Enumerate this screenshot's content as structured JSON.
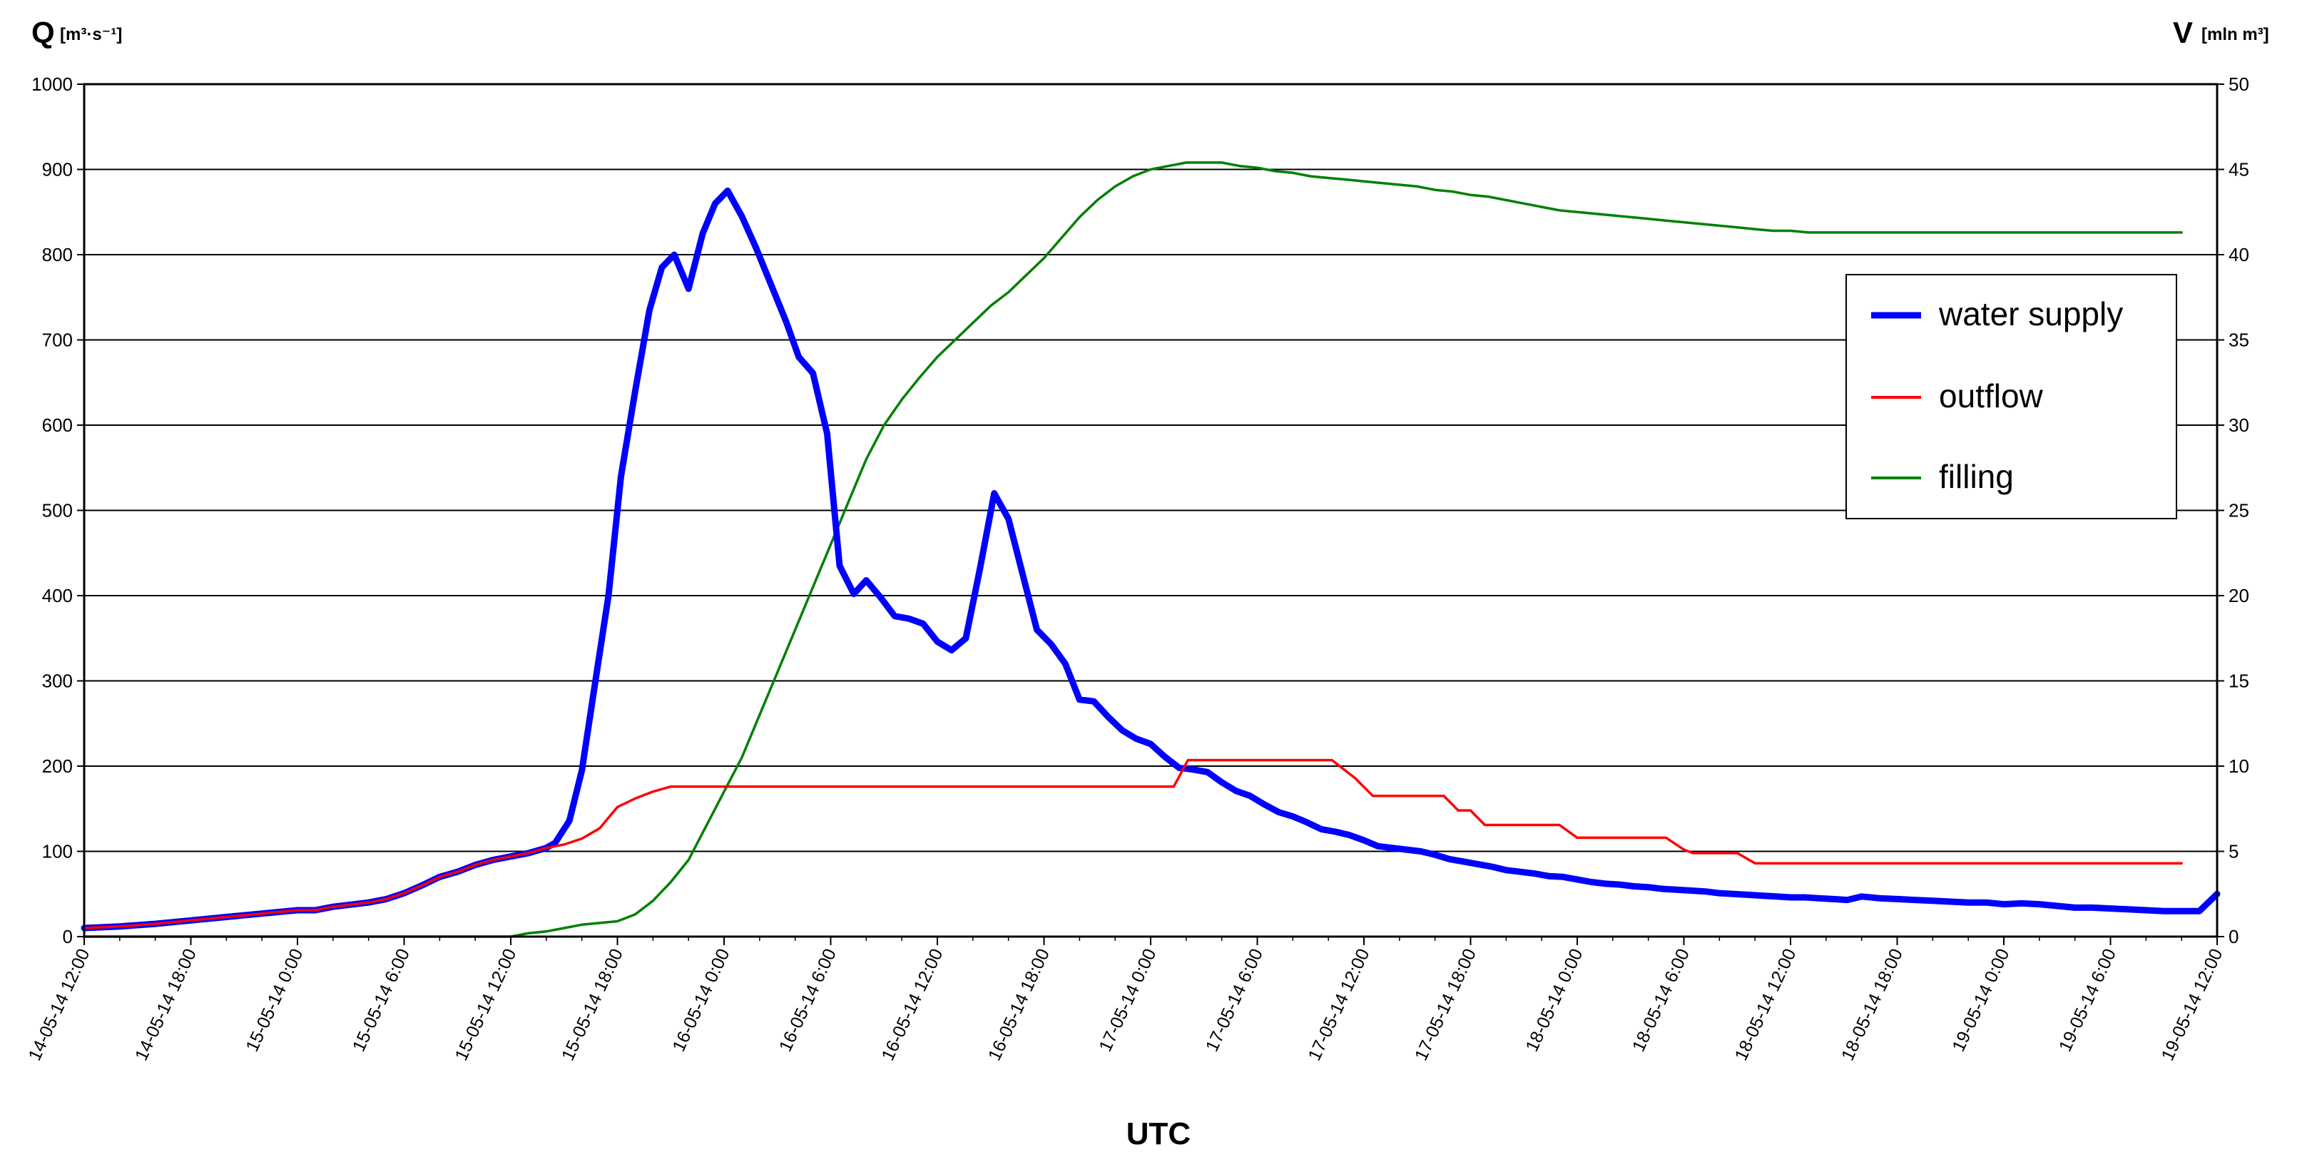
{
  "chart_data": {
    "type": "line",
    "y_left": {
      "label_main": "Q",
      "label_unit": "[m³·s⁻¹]",
      "range": [
        0,
        1000
      ],
      "ticks": [
        "0",
        "100",
        "200",
        "300",
        "400",
        "500",
        "600",
        "700",
        "800",
        "900",
        "1000"
      ]
    },
    "y_right": {
      "label_main": "V",
      "label_unit": "[mln m³]",
      "range": [
        0,
        50
      ],
      "ticks": [
        "0",
        "5",
        "10",
        "15",
        "20",
        "25",
        "30",
        "35",
        "40",
        "45",
        "50"
      ]
    },
    "xlabel": "UTC",
    "x_range_hours": [
      0,
      120
    ],
    "x_ticks": [
      "14-05-14 12:00",
      "14-05-14 18:00",
      "15-05-14 0:00",
      "15-05-14 6:00",
      "15-05-14 12:00",
      "15-05-14 18:00",
      "16-05-14 0:00",
      "16-05-14 6:00",
      "16-05-14 12:00",
      "16-05-14 18:00",
      "17-05-14 0:00",
      "17-05-14 6:00",
      "17-05-14 12:00",
      "17-05-14 18:00",
      "18-05-14 0:00",
      "18-05-14 6:00",
      "18-05-14 12:00",
      "18-05-14 18:00",
      "19-05-14 0:00",
      "19-05-14 6:00",
      "19-05-14 12:00"
    ],
    "grid": true,
    "legend_position": "right",
    "series": [
      {
        "name": "water supply",
        "axis": "left",
        "color": "#0000ff",
        "points": [
          [
            0,
            10
          ],
          [
            2,
            12
          ],
          [
            4,
            15
          ],
          [
            6,
            19
          ],
          [
            8,
            23
          ],
          [
            10,
            27
          ],
          [
            12,
            31
          ],
          [
            13,
            31
          ],
          [
            14,
            35
          ],
          [
            16,
            40
          ],
          [
            17,
            44
          ],
          [
            18,
            51
          ],
          [
            19,
            60
          ],
          [
            20,
            70
          ],
          [
            21,
            76
          ],
          [
            22,
            84
          ],
          [
            23,
            90
          ],
          [
            24,
            94
          ],
          [
            25,
            98
          ],
          [
            26,
            104
          ],
          [
            26.5,
            110
          ],
          [
            27.3,
            136
          ],
          [
            28,
            195
          ],
          [
            28.8,
            305
          ],
          [
            29.5,
            400
          ],
          [
            30.2,
            540
          ],
          [
            31,
            640
          ],
          [
            31.8,
            735
          ],
          [
            32.5,
            785
          ],
          [
            33.2,
            800
          ],
          [
            34,
            760
          ],
          [
            34.8,
            825
          ],
          [
            35.5,
            860
          ],
          [
            36.2,
            875
          ],
          [
            37,
            845
          ],
          [
            37.8,
            808
          ],
          [
            38.6,
            767
          ],
          [
            39.5,
            721
          ],
          [
            40.2,
            680
          ],
          [
            41,
            661
          ],
          [
            41.8,
            590
          ],
          [
            42.5,
            435
          ],
          [
            43.3,
            402
          ],
          [
            44,
            418
          ],
          [
            44.8,
            398
          ],
          [
            45.6,
            376
          ],
          [
            46.4,
            373
          ],
          [
            47.2,
            367
          ],
          [
            48,
            346
          ],
          [
            48.8,
            336
          ],
          [
            49.6,
            350
          ],
          [
            50.4,
            432
          ],
          [
            51.2,
            520
          ],
          [
            52,
            490
          ],
          [
            52.8,
            425
          ],
          [
            53.6,
            360
          ],
          [
            54.4,
            343
          ],
          [
            55.2,
            320
          ],
          [
            56,
            278
          ],
          [
            56.8,
            276
          ],
          [
            57.6,
            258
          ],
          [
            58.4,
            242
          ],
          [
            59.2,
            232
          ],
          [
            60,
            226
          ],
          [
            60.8,
            211
          ],
          [
            61.6,
            198
          ],
          [
            62.4,
            196
          ],
          [
            63.2,
            193
          ],
          [
            64,
            181
          ],
          [
            64.8,
            171
          ],
          [
            65.6,
            165
          ],
          [
            66.4,
            155
          ],
          [
            67.2,
            146
          ],
          [
            68,
            141
          ],
          [
            68.8,
            134
          ],
          [
            69.6,
            126
          ],
          [
            70.4,
            123
          ],
          [
            71.2,
            119
          ],
          [
            72,
            113
          ],
          [
            72.8,
            106
          ],
          [
            73.6,
            104
          ],
          [
            74.4,
            102
          ],
          [
            75.2,
            100
          ],
          [
            76,
            96
          ],
          [
            76.8,
            91
          ],
          [
            77.6,
            88
          ],
          [
            78.4,
            85
          ],
          [
            79.2,
            82
          ],
          [
            80,
            78
          ],
          [
            80.8,
            76
          ],
          [
            81.6,
            74
          ],
          [
            82.4,
            71
          ],
          [
            83.2,
            70
          ],
          [
            84,
            67
          ],
          [
            84.8,
            64
          ],
          [
            85.6,
            62
          ],
          [
            86.4,
            61
          ],
          [
            87.2,
            59
          ],
          [
            88,
            58
          ],
          [
            88.8,
            56
          ],
          [
            89.6,
            55
          ],
          [
            90.4,
            54
          ],
          [
            91.2,
            53
          ],
          [
            92,
            51
          ],
          [
            92.8,
            50
          ],
          [
            93.6,
            49
          ],
          [
            94.4,
            48
          ],
          [
            95.2,
            47
          ],
          [
            96,
            46
          ],
          [
            96.8,
            46
          ],
          [
            97.6,
            45
          ],
          [
            98.4,
            44
          ],
          [
            99.2,
            43
          ],
          [
            100,
            47
          ],
          [
            101,
            45
          ],
          [
            102,
            44
          ],
          [
            103,
            43
          ],
          [
            104,
            42
          ],
          [
            105,
            41
          ],
          [
            106,
            40
          ],
          [
            107,
            40
          ],
          [
            108,
            38
          ],
          [
            109,
            39
          ],
          [
            110,
            38
          ],
          [
            111,
            36
          ],
          [
            112,
            34
          ],
          [
            113,
            34
          ],
          [
            114,
            33
          ],
          [
            115,
            32
          ],
          [
            116,
            31
          ],
          [
            117,
            30
          ],
          [
            118,
            30
          ],
          [
            119,
            30
          ],
          [
            120,
            50
          ]
        ]
      },
      {
        "name": "outflow",
        "axis": "left",
        "color": "#ff0000",
        "points": [
          [
            0,
            10
          ],
          [
            2,
            12
          ],
          [
            4,
            15
          ],
          [
            6,
            19
          ],
          [
            8,
            23
          ],
          [
            10,
            27
          ],
          [
            12,
            31
          ],
          [
            13,
            31
          ],
          [
            14,
            35
          ],
          [
            16,
            40
          ],
          [
            17,
            44
          ],
          [
            18,
            51
          ],
          [
            19,
            60
          ],
          [
            20,
            70
          ],
          [
            21,
            76
          ],
          [
            22,
            84
          ],
          [
            23,
            90
          ],
          [
            24,
            94
          ],
          [
            25,
            98
          ],
          [
            26,
            104
          ],
          [
            27,
            108
          ],
          [
            28,
            115
          ],
          [
            29,
            127
          ],
          [
            30,
            152
          ],
          [
            31,
            162
          ],
          [
            32,
            170
          ],
          [
            33,
            176
          ],
          [
            34,
            176
          ],
          [
            36,
            176
          ],
          [
            40,
            176
          ],
          [
            44,
            176
          ],
          [
            48,
            176
          ],
          [
            52,
            176
          ],
          [
            56,
            176
          ],
          [
            58,
            176
          ],
          [
            60,
            176
          ],
          [
            61.3,
            176
          ],
          [
            62.1,
            207
          ],
          [
            64,
            207
          ],
          [
            68,
            207
          ],
          [
            70.2,
            207
          ],
          [
            71.5,
            186
          ],
          [
            72.5,
            165
          ],
          [
            74,
            165
          ],
          [
            75.5,
            165
          ],
          [
            76.5,
            165
          ],
          [
            77.3,
            148
          ],
          [
            78,
            148
          ],
          [
            78.8,
            131
          ],
          [
            80,
            131
          ],
          [
            82,
            131
          ],
          [
            83,
            131
          ],
          [
            84,
            116
          ],
          [
            86,
            116
          ],
          [
            88,
            116
          ],
          [
            89,
            116
          ],
          [
            90,
            102
          ],
          [
            90.5,
            98
          ],
          [
            92,
            98
          ],
          [
            93,
            98
          ],
          [
            94,
            86
          ],
          [
            96,
            86
          ],
          [
            98,
            86
          ],
          [
            100,
            86
          ],
          [
            102,
            86
          ],
          [
            104,
            86
          ],
          [
            106,
            86
          ],
          [
            108,
            86
          ],
          [
            110,
            86
          ],
          [
            112,
            86
          ],
          [
            114,
            86
          ],
          [
            116,
            86
          ],
          [
            118,
            86
          ]
        ]
      },
      {
        "name": "filling",
        "axis": "right",
        "color": "#008000",
        "points": [
          [
            0,
            0
          ],
          [
            8,
            0
          ],
          [
            16,
            0
          ],
          [
            24,
            0
          ],
          [
            25,
            0.2
          ],
          [
            26,
            0.3
          ],
          [
            27,
            0.5
          ],
          [
            28,
            0.7
          ],
          [
            29,
            0.8
          ],
          [
            30,
            0.9
          ],
          [
            31,
            1.3
          ],
          [
            32,
            2.1
          ],
          [
            33,
            3.2
          ],
          [
            34,
            4.5
          ],
          [
            35,
            6.5
          ],
          [
            36,
            8.5
          ],
          [
            37,
            10.5
          ],
          [
            38,
            13
          ],
          [
            39,
            15.5
          ],
          [
            40,
            18
          ],
          [
            41,
            20.5
          ],
          [
            42,
            23
          ],
          [
            43,
            25.5
          ],
          [
            44,
            28
          ],
          [
            45,
            30
          ],
          [
            46,
            31.5
          ],
          [
            47,
            32.8
          ],
          [
            48,
            34
          ],
          [
            49,
            35
          ],
          [
            50,
            36
          ],
          [
            51,
            37
          ],
          [
            52,
            37.8
          ],
          [
            53,
            38.8
          ],
          [
            54,
            39.8
          ],
          [
            55,
            41
          ],
          [
            56,
            42.2
          ],
          [
            57,
            43.2
          ],
          [
            58,
            44
          ],
          [
            59,
            44.6
          ],
          [
            60,
            45
          ],
          [
            61,
            45.2
          ],
          [
            62,
            45.4
          ],
          [
            63,
            45.4
          ],
          [
            64,
            45.4
          ],
          [
            65,
            45.2
          ],
          [
            66,
            45.1
          ],
          [
            67,
            44.9
          ],
          [
            68,
            44.8
          ],
          [
            69,
            44.6
          ],
          [
            70,
            44.5
          ],
          [
            71,
            44.4
          ],
          [
            72,
            44.3
          ],
          [
            73,
            44.2
          ],
          [
            74,
            44.1
          ],
          [
            75,
            44
          ],
          [
            76,
            43.8
          ],
          [
            77,
            43.7
          ],
          [
            78,
            43.5
          ],
          [
            79,
            43.4
          ],
          [
            80,
            43.2
          ],
          [
            81,
            43
          ],
          [
            82,
            42.8
          ],
          [
            83,
            42.6
          ],
          [
            84,
            42.5
          ],
          [
            85,
            42.4
          ],
          [
            86,
            42.3
          ],
          [
            87,
            42.2
          ],
          [
            88,
            42.1
          ],
          [
            89,
            42
          ],
          [
            90,
            41.9
          ],
          [
            91,
            41.8
          ],
          [
            92,
            41.7
          ],
          [
            93,
            41.6
          ],
          [
            94,
            41.5
          ],
          [
            95,
            41.4
          ],
          [
            96,
            41.4
          ],
          [
            97,
            41.3
          ],
          [
            98,
            41.3
          ],
          [
            99,
            41.3
          ],
          [
            100,
            41.3
          ],
          [
            102,
            41.3
          ],
          [
            104,
            41.3
          ],
          [
            106,
            41.3
          ],
          [
            108,
            41.3
          ],
          [
            110,
            41.3
          ],
          [
            112,
            41.3
          ],
          [
            114,
            41.3
          ],
          [
            116,
            41.3
          ],
          [
            118,
            41.3
          ]
        ]
      }
    ]
  }
}
